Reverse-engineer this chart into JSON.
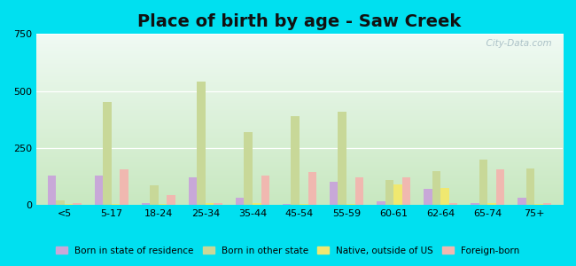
{
  "title": "Place of birth by age - Saw Creek",
  "categories": [
    "<5",
    "5-17",
    "18-24",
    "25-34",
    "35-44",
    "45-54",
    "55-59",
    "60-61",
    "62-64",
    "65-74",
    "75+"
  ],
  "series": {
    "Born in state of residence": [
      130,
      130,
      10,
      120,
      30,
      5,
      100,
      15,
      70,
      10,
      30
    ],
    "Born in other state": [
      20,
      450,
      85,
      540,
      320,
      390,
      410,
      110,
      150,
      200,
      160
    ],
    "Native, outside of US": [
      5,
      5,
      5,
      10,
      10,
      5,
      5,
      90,
      75,
      10,
      5
    ],
    "Foreign-born": [
      10,
      155,
      45,
      10,
      130,
      145,
      120,
      120,
      10,
      155,
      10
    ]
  },
  "colors": {
    "Born in state of residence": "#c8a8d8",
    "Born in other state": "#c8d898",
    "Native, outside of US": "#f0e870",
    "Foreign-born": "#f0b8b0"
  },
  "ylim": [
    0,
    750
  ],
  "yticks": [
    0,
    250,
    500,
    750
  ],
  "outer_bg": "#00e0f0",
  "title_fontsize": 14,
  "bar_width": 0.18,
  "watermark": "  City-Data.com"
}
